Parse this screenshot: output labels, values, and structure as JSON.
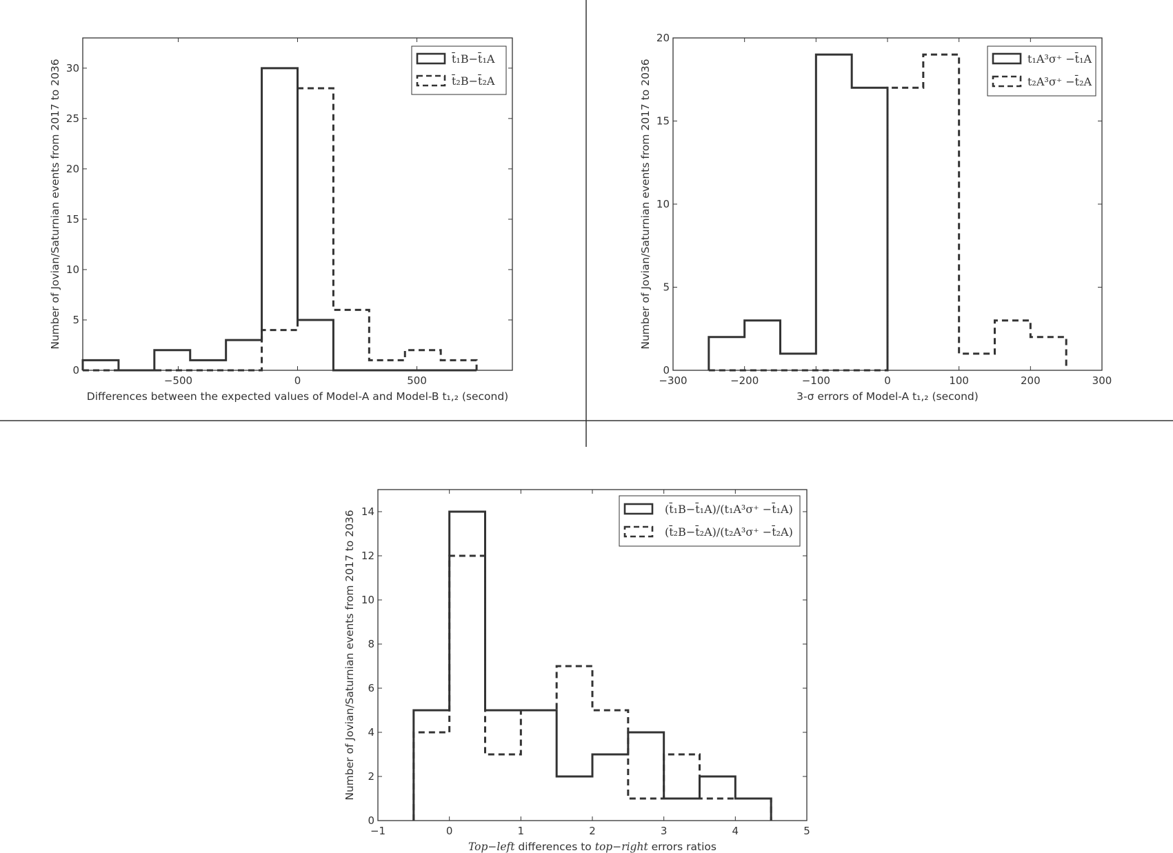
{
  "chart_data": [
    {
      "type": "histogram-step",
      "panel": "top-left",
      "xlabel": "Differences between the expected values of Model-A and Model-B t₁,₂ (second)",
      "ylabel": "Number of Jovian/Saturnian events from 2017 to 2036",
      "xlim": [
        -900,
        900
      ],
      "ylim": [
        0,
        33
      ],
      "xticks": [
        -500,
        0,
        500
      ],
      "xtick_labels": [
        "−500",
        "0",
        "500"
      ],
      "yticks": [
        0,
        5,
        10,
        15,
        20,
        25,
        30
      ],
      "ytick_labels": [
        "0",
        "5",
        "10",
        "15",
        "20",
        "25",
        "30"
      ],
      "legend_position": "top-right",
      "series": [
        {
          "name": "t̄₁B−t̄₁A",
          "style": "solid",
          "edges": [
            -900,
            -750,
            -600,
            -450,
            -300,
            -150,
            0,
            150,
            300,
            450,
            600,
            750
          ],
          "counts": [
            1,
            0,
            2,
            1,
            3,
            30,
            5,
            0,
            0,
            0,
            0
          ]
        },
        {
          "name": "t̄₂B−t̄₂A",
          "style": "dashed",
          "edges": [
            -900,
            -750,
            -600,
            -450,
            -300,
            -150,
            0,
            150,
            300,
            450,
            600,
            750
          ],
          "counts": [
            0,
            0,
            0,
            0,
            0,
            4,
            28,
            6,
            1,
            2,
            1
          ]
        }
      ]
    },
    {
      "type": "histogram-step",
      "panel": "top-right",
      "xlabel": "3-σ errors of Model-A t₁,₂ (second)",
      "ylabel": "Number of Jovian/Saturnian events from 2017 to 2036",
      "xlim": [
        -300,
        300
      ],
      "ylim": [
        0,
        20
      ],
      "xticks": [
        -300,
        -200,
        -100,
        0,
        100,
        200,
        300
      ],
      "xtick_labels": [
        "−300",
        "−200",
        "−100",
        "0",
        "100",
        "200",
        "300"
      ],
      "yticks": [
        0,
        5,
        10,
        15,
        20
      ],
      "ytick_labels": [
        "0",
        "5",
        "10",
        "15",
        "20"
      ],
      "legend_position": "top-right",
      "series": [
        {
          "name": "t₁A³σ⁺ −t̄₁A",
          "style": "solid",
          "edges": [
            -250,
            -200,
            -150,
            -100,
            -50,
            0
          ],
          "counts": [
            2,
            3,
            1,
            19,
            17
          ]
        },
        {
          "name": "t₂A³σ⁺ −t̄₂A",
          "style": "dashed",
          "edges": [
            -250,
            0,
            50,
            100,
            150,
            200,
            250
          ],
          "counts": [
            0,
            17,
            19,
            1,
            3,
            2
          ]
        }
      ]
    },
    {
      "type": "histogram-step",
      "panel": "bottom",
      "xlabel_parts": [
        "Top−left",
        " differences to ",
        "top−right",
        " errors ratios"
      ],
      "ylabel": "Number of Jovian/Saturnian events from 2017 to 2036",
      "xlim": [
        -1,
        5
      ],
      "ylim": [
        0,
        15
      ],
      "xticks": [
        -1,
        0,
        1,
        2,
        3,
        4,
        5
      ],
      "xtick_labels": [
        "−1",
        "0",
        "1",
        "2",
        "3",
        "4",
        "5"
      ],
      "yticks": [
        0,
        2,
        4,
        6,
        8,
        10,
        12,
        14
      ],
      "ytick_labels": [
        "0",
        "2",
        "4",
        "6",
        "8",
        "10",
        "12",
        "14"
      ],
      "legend_position": "top-right",
      "series": [
        {
          "name": "(t̄₁B−t̄₁A)/(t₁A³σ⁺ −t̄₁A)",
          "style": "solid",
          "edges": [
            -0.5,
            0,
            0.5,
            1,
            1.5,
            2,
            2.5,
            3,
            3.5,
            4,
            4.5
          ],
          "counts": [
            5,
            14,
            5,
            5,
            2,
            3,
            4,
            1,
            2,
            1
          ]
        },
        {
          "name": "(t̄₂B−t̄₂A)/(t₂A³σ⁺ −t̄₂A)",
          "style": "dashed",
          "edges": [
            -0.5,
            0,
            0.5,
            1,
            1.5,
            2,
            2.5,
            3,
            3.5,
            4,
            4.5
          ],
          "counts": [
            4,
            12,
            3,
            5,
            7,
            5,
            1,
            3,
            1,
            1
          ]
        }
      ]
    }
  ]
}
